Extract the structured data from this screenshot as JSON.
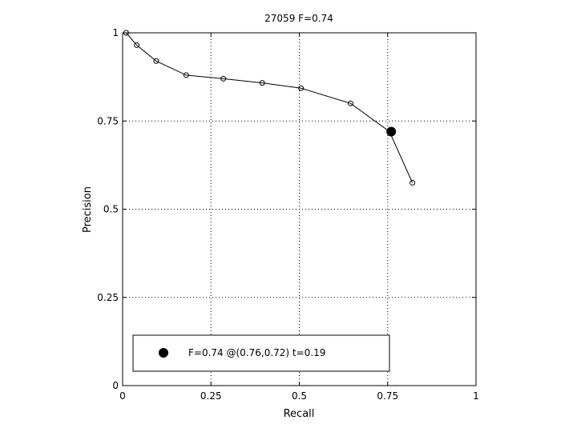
{
  "chart_data": {
    "type": "line",
    "title": "27059 F=0.74",
    "xlabel": "Recall",
    "ylabel": "Precision",
    "xlim": [
      0,
      1
    ],
    "ylim": [
      0,
      1
    ],
    "grid": true,
    "xticks": [
      "0",
      "0.25",
      "0.5",
      "0.75",
      "1"
    ],
    "yticks": [
      "0",
      "0.25",
      "0.5",
      "0.75",
      "1"
    ],
    "series": [
      {
        "x": [
          0.01,
          0.04,
          0.095,
          0.18,
          0.285,
          0.395,
          0.505,
          0.645,
          0.755,
          0.82
        ],
        "y": [
          1.0,
          0.965,
          0.92,
          0.88,
          0.87,
          0.858,
          0.843,
          0.8,
          0.72,
          0.575
        ]
      }
    ],
    "highlight": {
      "x": 0.76,
      "y": 0.72
    },
    "legend": {
      "location": "bottom-left",
      "text": "F=0.74 @(0.76,0.72) t=0.19"
    }
  }
}
